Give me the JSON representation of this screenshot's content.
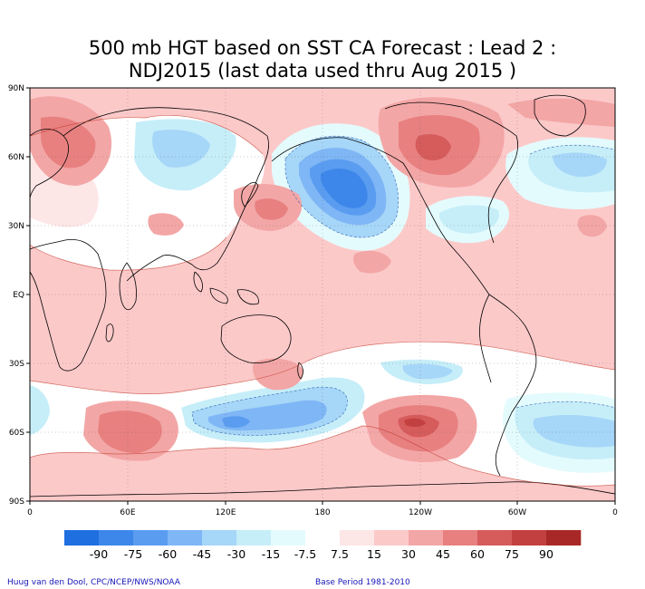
{
  "title": {
    "line1": "500 mb HGT based on SST CA Forecast : Lead 2 :",
    "line2": "NDJ2015 (last data used thru Aug 2015 )"
  },
  "lat_labels": [
    "90N",
    "60N",
    "30N",
    "EQ",
    "30S",
    "60S",
    "90S"
  ],
  "lon_labels": [
    "0",
    "60E",
    "120E",
    "180",
    "120W",
    "60W",
    "0"
  ],
  "colorbar": {
    "labels": [
      "-90",
      "-75",
      "-60",
      "-45",
      "-30",
      "-15",
      "-7.5",
      "7.5",
      "15",
      "30",
      "45",
      "60",
      "75",
      "90"
    ],
    "colors": [
      "#1f6fe0",
      "#3d87ea",
      "#5a9cf0",
      "#7fb6f5",
      "#a6d6f8",
      "#c6eef9",
      "#e4fbfd",
      "#ffffff",
      "#fde6e6",
      "#fcc9c9",
      "#f3a6a6",
      "#e88080",
      "#d65b5b",
      "#c24040",
      "#a82828"
    ]
  },
  "credits": {
    "left": "Huug van den Dool, CPC/NCEP/NWS/NOAA",
    "right": "Base Period 1981-2010"
  }
}
